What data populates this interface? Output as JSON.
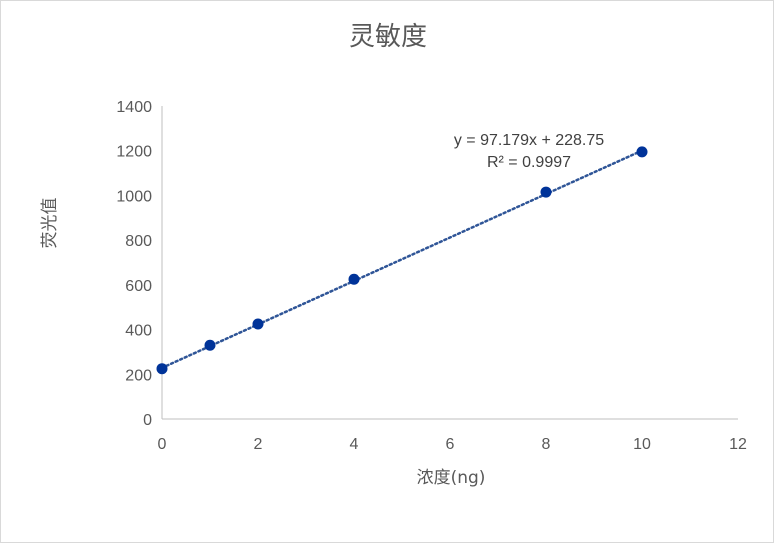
{
  "chart_data": {
    "type": "scatter",
    "title": "灵敏度",
    "xlabel": "浓度(ng)",
    "ylabel": "荧光值",
    "xlim": [
      0,
      12
    ],
    "ylim": [
      0,
      1400
    ],
    "x_ticks": [
      "0",
      "2",
      "4",
      "6",
      "8",
      "10",
      "12"
    ],
    "y_ticks": [
      "0",
      "200",
      "400",
      "600",
      "800",
      "1000",
      "1200",
      "1400"
    ],
    "grid": false,
    "series": [
      {
        "x": [
          0,
          1,
          2,
          4,
          8,
          10
        ],
        "y": [
          225,
          330,
          425,
          625,
          1015,
          1195
        ],
        "color": "#003399"
      }
    ],
    "trendline": {
      "type": "linear",
      "slope": 97.179,
      "intercept": 228.75,
      "equation": "y = 97.179x + 228.75",
      "r_squared": "R² = 0.9997",
      "style": "dotted",
      "color": "#2f5597"
    }
  }
}
